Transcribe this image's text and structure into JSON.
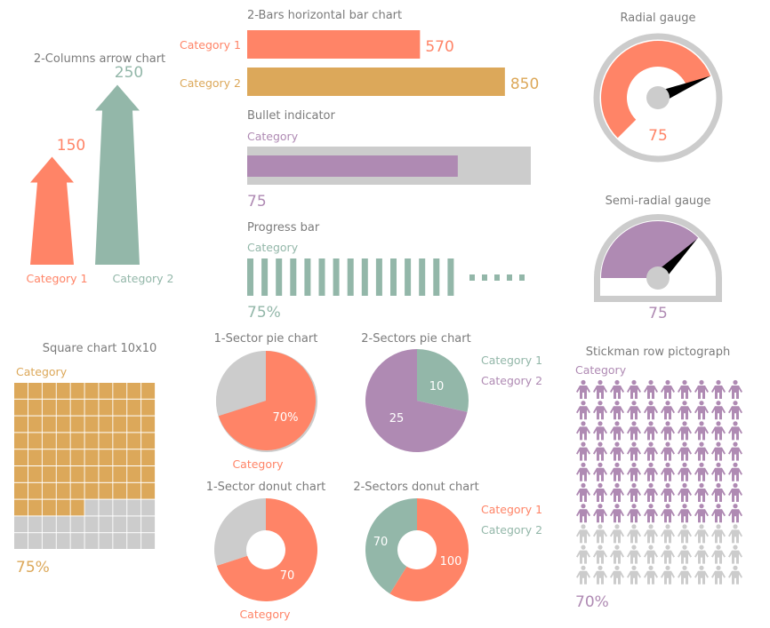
{
  "colors": {
    "coral": "#FF8467",
    "gold": "#DCA85A",
    "teal": "#93B7A9",
    "purple": "#AF8AB3",
    "gray": "#CCCCCC",
    "title": "#7B7B7B"
  },
  "chart_data": [
    {
      "id": "arrow",
      "type": "bar",
      "title": "2-Columns arrow chart",
      "categories": [
        "Category 1",
        "Category 2"
      ],
      "values": [
        150,
        250
      ],
      "value_labels": [
        "150",
        "250"
      ],
      "colors": [
        "#FF8467",
        "#93B7A9"
      ]
    },
    {
      "id": "hbar",
      "type": "bar",
      "orientation": "horizontal",
      "title": "2-Bars horizontal bar chart",
      "categories": [
        "Category 1",
        "Category 2"
      ],
      "values": [
        570,
        850
      ],
      "value_labels": [
        "570",
        "850"
      ],
      "colors": [
        "#FF8467",
        "#DCA85A"
      ]
    },
    {
      "id": "bullet",
      "type": "bar",
      "title": "Bullet indicator",
      "category": "Category",
      "value": 75,
      "max": 100,
      "value_label": "75",
      "color": "#AF8AB3"
    },
    {
      "id": "progress",
      "type": "bar",
      "title": "Progress bar",
      "category": "Category",
      "value": 75,
      "max": 100,
      "segments": 20,
      "value_label": "75%",
      "color": "#93B7A9"
    },
    {
      "id": "radial",
      "type": "gauge",
      "title": "Radial gauge",
      "value": 75,
      "max": 100,
      "value_label": "75",
      "color": "#FF8467"
    },
    {
      "id": "semi",
      "type": "gauge",
      "title": "Semi-radial gauge",
      "value": 75,
      "max": 100,
      "value_label": "75",
      "color": "#AF8AB3"
    },
    {
      "id": "square",
      "type": "heatmap",
      "title": "Square chart 10x10",
      "category": "Category",
      "value": 75,
      "max": 100,
      "value_label": "75%",
      "color": "#DCA85A"
    },
    {
      "id": "pie1",
      "type": "pie",
      "title": "1-Sector pie chart",
      "category": "Category",
      "value": 70,
      "value_label": "70%",
      "color": "#FF8467"
    },
    {
      "id": "pie2",
      "type": "pie",
      "title": "2-Sectors pie chart",
      "categories": [
        "Category 1",
        "Category 2"
      ],
      "values": [
        10,
        25
      ],
      "value_labels": [
        "10",
        "25"
      ],
      "colors": [
        "#93B7A9",
        "#AF8AB3"
      ],
      "legend": "right"
    },
    {
      "id": "donut1",
      "type": "pie",
      "donut": true,
      "title": "1-Sector donut chart",
      "category": "Category",
      "value": 70,
      "value_label": "70",
      "color": "#FF8467"
    },
    {
      "id": "donut2",
      "type": "pie",
      "donut": true,
      "title": "2-Sectors donut chart",
      "categories": [
        "Category 1",
        "Category 2"
      ],
      "values": [
        100,
        70
      ],
      "value_labels": [
        "100",
        "70"
      ],
      "colors": [
        "#FF8467",
        "#93B7A9"
      ],
      "legend": "right"
    },
    {
      "id": "stickman",
      "type": "pictograph",
      "title": "Stickman row pictograph",
      "category": "Category",
      "value": 70,
      "max": 100,
      "value_label": "70%",
      "color": "#AF8AB3",
      "icon": "person-icon"
    }
  ]
}
